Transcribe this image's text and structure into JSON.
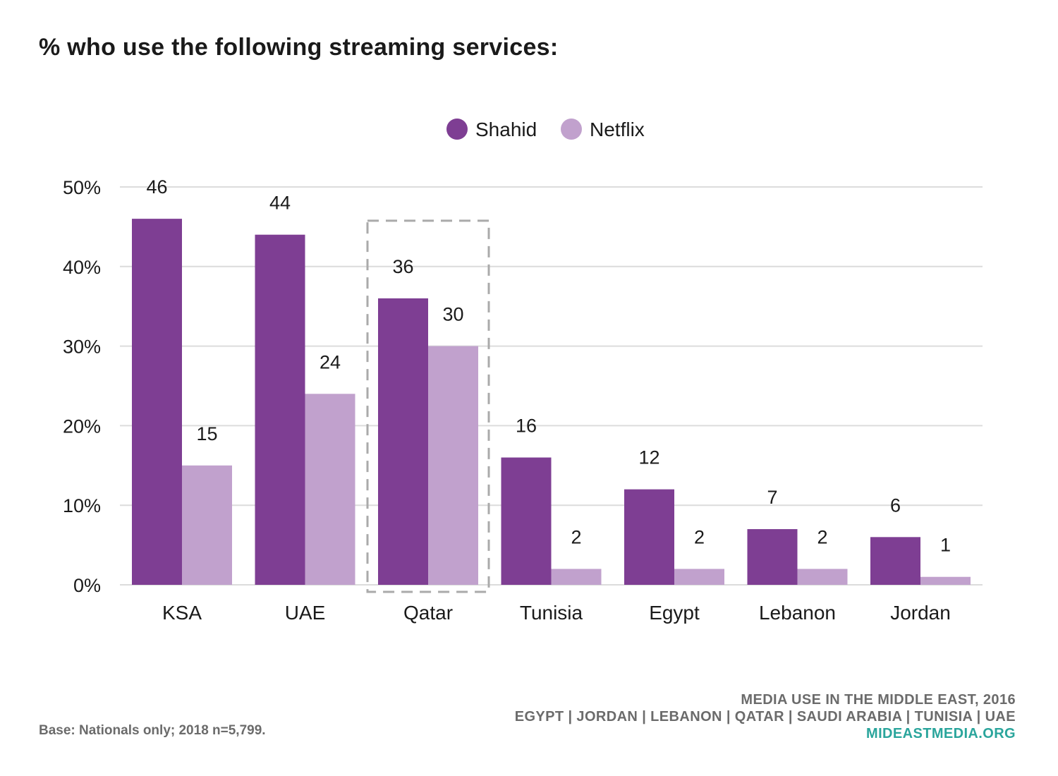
{
  "title": "% who use the following streaming services:",
  "chart_data": {
    "type": "bar",
    "categories": [
      "KSA",
      "UAE",
      "Qatar",
      "Tunisia",
      "Egypt",
      "Lebanon",
      "Jordan"
    ],
    "series": [
      {
        "name": "Shahid",
        "values": [
          46,
          44,
          36,
          16,
          12,
          7,
          6
        ],
        "color": "#7e3e93"
      },
      {
        "name": "Netflix",
        "values": [
          15,
          24,
          30,
          2,
          2,
          2,
          1
        ],
        "color": "#c1a1cd"
      }
    ],
    "ylim": [
      0,
      50
    ],
    "yticks": [
      0,
      10,
      20,
      30,
      40,
      50
    ],
    "ytick_labels": [
      "0%",
      "10%",
      "20%",
      "30%",
      "40%",
      "50%"
    ],
    "grid": true,
    "legend": "top-center",
    "highlight_category": "Qatar"
  },
  "footer": {
    "base_note": "Base: Nationals only; 2018 n=5,799.",
    "source_line1": "MEDIA USE IN THE MIDDLE EAST, 2016",
    "source_line2": "EGYPT | JORDAN | LEBANON | QATAR | SAUDI ARABIA | TUNISIA | UAE",
    "source_link": "MIDEASTMEDIA.ORG"
  }
}
